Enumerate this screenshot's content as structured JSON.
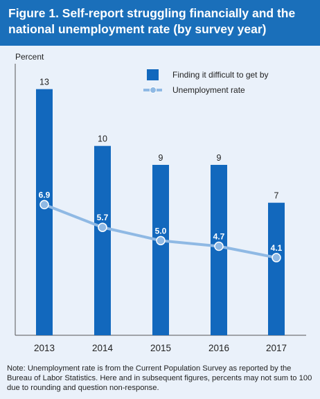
{
  "title": "Figure 1. Self-report struggling financially and the national unemployment rate (by survey year)",
  "note": "Note: Unemployment rate is from the Current Population Survey as reported by the Bureau of Labor Statistics. Here and in subsequent figures, percents may not sum to 100 due to rounding and question non-response.",
  "colors": {
    "header": "#1a6fba",
    "background": "#eaf1fa",
    "bar": "#1268bd",
    "line": "#8fb9e4"
  },
  "chart_data": {
    "type": "bar",
    "ylabel": "Percent",
    "ylim": [
      0,
      15
    ],
    "categories": [
      "2013",
      "2014",
      "2015",
      "2016",
      "2017"
    ],
    "series": [
      {
        "name": "Finding it difficult to get by",
        "type": "bar",
        "values": [
          13,
          10,
          9,
          9,
          7
        ],
        "labels": [
          "13",
          "10",
          "9",
          "9",
          "7"
        ]
      },
      {
        "name": "Unemployment rate",
        "type": "line",
        "values": [
          6.9,
          5.7,
          5.0,
          4.7,
          4.1
        ],
        "labels": [
          "6.9",
          "5.7",
          "5.0",
          "4.7",
          "4.1"
        ]
      }
    ],
    "legend_position": "top-right",
    "grid": false
  }
}
